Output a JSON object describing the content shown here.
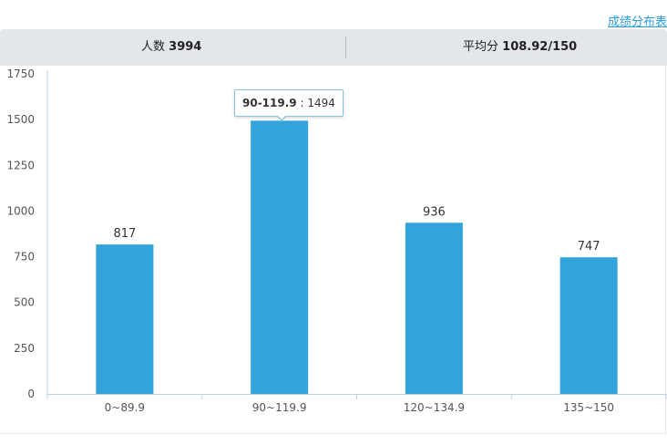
{
  "header": {
    "link_label": "成绩分布表"
  },
  "stats": {
    "count_label": "人数",
    "count_value": "3994",
    "avg_label": "平均分",
    "avg_value": "108.92/150"
  },
  "tooltip": {
    "category": "90-119.9",
    "separator": " : ",
    "value": "1494"
  },
  "chart_data": {
    "type": "bar",
    "categories": [
      "0~89.9",
      "90~119.9",
      "120~134.9",
      "135~150"
    ],
    "values": [
      817,
      1494,
      936,
      747
    ],
    "ylim": [
      0,
      1750
    ],
    "yticks": [
      0,
      250,
      500,
      750,
      1000,
      1250,
      1500,
      1750
    ],
    "grid": false,
    "bar_color": "#33a3dc",
    "axis_color": "#c0d0e0",
    "title": "",
    "xlabel": "",
    "ylabel": ""
  }
}
